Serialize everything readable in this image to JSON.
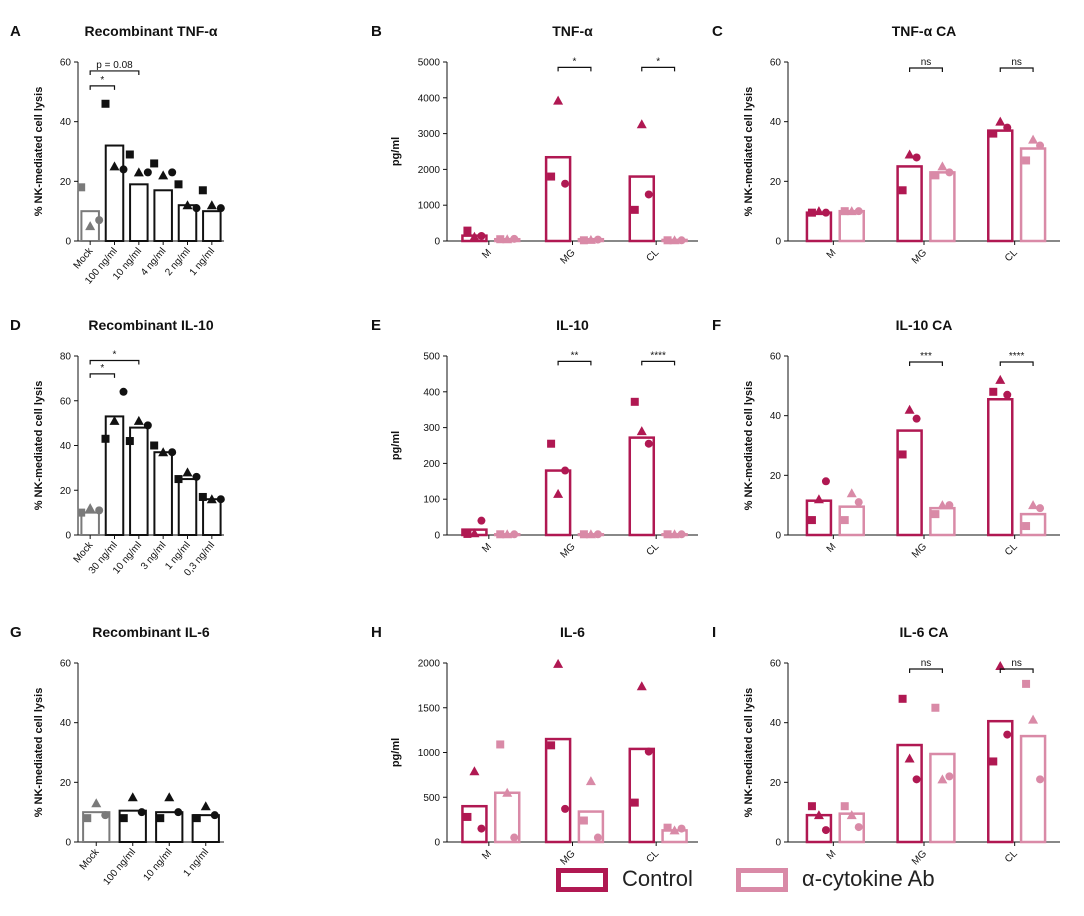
{
  "colors": {
    "black": "#111111",
    "control": "#b01852",
    "ab": "#d98aa7",
    "grey": "#7a7a7a"
  },
  "legend": {
    "control_label": "Control",
    "ab_label": "α-cytokine Ab"
  },
  "chart_data": [
    {
      "letter": "A",
      "type": "bar",
      "kind": "recomb",
      "title": "Recombinant TNF-α",
      "ylabel": "% NK-mediated cell lysis",
      "ylim": [
        0,
        60
      ],
      "yticks": [
        0,
        20,
        40,
        60
      ],
      "categories": [
        "Mock",
        "100 ng/ml",
        "10 ng/ml",
        "4 ng/ml",
        "2 ng/ml",
        "1 ng/ml"
      ],
      "values": [
        10,
        32,
        19,
        17,
        12,
        10
      ],
      "points": [
        [
          18,
          5,
          7
        ],
        [
          46,
          25,
          24
        ],
        [
          29,
          23,
          23
        ],
        [
          26,
          22,
          23
        ],
        [
          19,
          12,
          11
        ],
        [
          17,
          12,
          11
        ]
      ],
      "annotations": [
        {
          "from": 0,
          "to": 1,
          "label": "*",
          "level": 52
        },
        {
          "from": 0,
          "to": 2,
          "label": "p = 0.08",
          "level": 57
        }
      ]
    },
    {
      "letter": "B",
      "type": "bar",
      "kind": "cyto",
      "title": "TNF-α",
      "ylabel": "pg/ml",
      "ylim": [
        0,
        5000
      ],
      "yticks": [
        0,
        1000,
        2000,
        3000,
        4000,
        5000
      ],
      "categories": [
        "M",
        "MG",
        "CL"
      ],
      "values": [
        150,
        2340,
        1800
      ],
      "values_ab": [
        50,
        50,
        30
      ],
      "points": [
        [
          290,
          120,
          140
        ],
        [
          1800,
          3920,
          1600
        ],
        [
          870,
          3260,
          1300
        ]
      ],
      "points_ab": [
        [
          50,
          50,
          60
        ],
        [
          20,
          30,
          40
        ],
        [
          20,
          20,
          20
        ]
      ],
      "annotations": [
        {
          "group": 1,
          "label": "*",
          "level": 4850
        },
        {
          "group": 2,
          "label": "*",
          "level": 4850
        }
      ]
    },
    {
      "letter": "C",
      "type": "bar",
      "kind": "cyto",
      "title": "TNF-α CA",
      "ylabel": "% NK-mediated cell lysis",
      "ylim": [
        0,
        60
      ],
      "yticks": [
        0,
        20,
        40,
        60
      ],
      "categories": [
        "M",
        "MG",
        "CL"
      ],
      "values": [
        9.5,
        25,
        37
      ],
      "values_ab": [
        10,
        23,
        31
      ],
      "points": [
        [
          9.5,
          10,
          9.5
        ],
        [
          17,
          29,
          28
        ],
        [
          36,
          40,
          38
        ]
      ],
      "points_ab": [
        [
          10,
          10,
          10
        ],
        [
          22,
          25,
          23
        ],
        [
          27,
          34,
          32
        ]
      ],
      "annotations": [
        {
          "group": 1,
          "label": "ns",
          "level": 58
        },
        {
          "group": 2,
          "label": "ns",
          "level": 58
        }
      ]
    },
    {
      "letter": "D",
      "type": "bar",
      "kind": "recomb",
      "title": "Recombinant IL-10",
      "ylabel": "% NK-mediated cell lysis",
      "ylim": [
        0,
        80
      ],
      "yticks": [
        0,
        20,
        40,
        60,
        80
      ],
      "categories": [
        "Mock",
        "30 ng/ml",
        "10 ng/ml",
        "3 ng/ml",
        "1 ng/ml",
        "0,3 ng/ml"
      ],
      "values": [
        10,
        53,
        48,
        37,
        25,
        16
      ],
      "points": [
        [
          10,
          12,
          11
        ],
        [
          43,
          51,
          64
        ],
        [
          42,
          51,
          49
        ],
        [
          40,
          37,
          37
        ],
        [
          25,
          28,
          26
        ],
        [
          17,
          16,
          16
        ]
      ],
      "annotations": [
        {
          "from": 0,
          "to": 1,
          "label": "*",
          "level": 72
        },
        {
          "from": 0,
          "to": 2,
          "label": "*",
          "level": 78
        }
      ]
    },
    {
      "letter": "E",
      "type": "bar",
      "kind": "cyto",
      "title": "IL-10",
      "ylabel": "pg/ml",
      "ylim": [
        0,
        500
      ],
      "yticks": [
        0,
        100,
        200,
        300,
        400,
        500
      ],
      "categories": [
        "M",
        "MG",
        "CL"
      ],
      "values": [
        15,
        180,
        272
      ],
      "values_ab": [
        2,
        2,
        2
      ],
      "points": [
        [
          3,
          5,
          40
        ],
        [
          255,
          115,
          180
        ],
        [
          372,
          290,
          255
        ]
      ],
      "points_ab": [
        [
          2,
          2,
          2
        ],
        [
          2,
          2,
          2
        ],
        [
          2,
          2,
          2
        ]
      ],
      "annotations": [
        {
          "group": 1,
          "label": "**",
          "level": 485
        },
        {
          "group": 2,
          "label": "****",
          "level": 485
        }
      ]
    },
    {
      "letter": "F",
      "type": "bar",
      "kind": "cyto",
      "title": "IL-10 CA",
      "ylabel": "% NK-mediated cell lysis",
      "ylim": [
        0,
        60
      ],
      "yticks": [
        0,
        20,
        40,
        60
      ],
      "categories": [
        "M",
        "MG",
        "CL"
      ],
      "values": [
        11.5,
        35,
        45.5
      ],
      "values_ab": [
        9.5,
        9,
        7
      ],
      "points": [
        [
          5,
          12,
          18
        ],
        [
          27,
          42,
          39
        ],
        [
          48,
          52,
          47
        ]
      ],
      "points_ab": [
        [
          5,
          14,
          11
        ],
        [
          7,
          10,
          10
        ],
        [
          3,
          10,
          9
        ]
      ],
      "annotations": [
        {
          "group": 1,
          "label": "***",
          "level": 58
        },
        {
          "group": 2,
          "label": "****",
          "level": 58
        }
      ]
    },
    {
      "letter": "G",
      "type": "bar",
      "kind": "recomb",
      "title": "Recombinant IL-6",
      "ylabel": "% NK-mediated cell lysis",
      "ylim": [
        0,
        60
      ],
      "yticks": [
        0,
        20,
        40,
        60
      ],
      "categories": [
        "Mock",
        "100 ng/ml",
        "10 ng/ml",
        "1 ng/ml"
      ],
      "values": [
        10,
        10.5,
        10,
        9
      ],
      "points": [
        [
          8,
          13,
          9
        ],
        [
          8,
          15,
          10
        ],
        [
          8,
          15,
          10
        ],
        [
          8,
          12,
          9
        ]
      ],
      "annotations": []
    },
    {
      "letter": "H",
      "type": "bar",
      "kind": "cyto",
      "title": "IL-6",
      "ylabel": "pg/ml",
      "ylim": [
        0,
        2000
      ],
      "yticks": [
        0,
        500,
        1000,
        1500,
        2000
      ],
      "categories": [
        "M",
        "MG",
        "CL"
      ],
      "values": [
        400,
        1150,
        1040
      ],
      "values_ab": [
        550,
        340,
        130
      ],
      "points": [
        [
          280,
          790,
          150
        ],
        [
          1080,
          1990,
          370
        ],
        [
          440,
          1740,
          1010
        ]
      ],
      "points_ab": [
        [
          1090,
          550,
          50
        ],
        [
          240,
          680,
          50
        ],
        [
          160,
          130,
          150
        ]
      ],
      "annotations": []
    },
    {
      "letter": "I",
      "type": "bar",
      "kind": "cyto",
      "title": "IL-6 CA",
      "ylabel": "% NK-mediated cell lysis",
      "ylim": [
        0,
        60
      ],
      "yticks": [
        0,
        20,
        40,
        60
      ],
      "categories": [
        "M",
        "MG",
        "CL"
      ],
      "values": [
        9,
        32.5,
        40.5
      ],
      "values_ab": [
        9.5,
        29.5,
        35.5
      ],
      "points": [
        [
          12,
          9,
          4
        ],
        [
          48,
          28,
          21
        ],
        [
          27,
          59,
          36
        ]
      ],
      "points_ab": [
        [
          12,
          9,
          5
        ],
        [
          45,
          21,
          22
        ],
        [
          53,
          41,
          21
        ]
      ],
      "annotations": [
        {
          "group": 1,
          "label": "ns",
          "level": 58
        },
        {
          "group": 2,
          "label": "ns",
          "level": 58
        }
      ]
    }
  ]
}
